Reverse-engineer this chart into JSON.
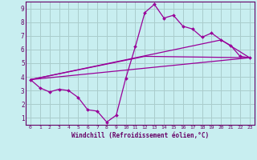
{
  "xlabel": "Windchill (Refroidissement éolien,°C)",
  "ylabel": "",
  "background_color": "#c8eef0",
  "grid_color": "#aacccc",
  "line_color": "#990099",
  "border_color": "#660066",
  "xlim": [
    -0.5,
    23.5
  ],
  "ylim": [
    0.5,
    9.5
  ],
  "xticks": [
    0,
    1,
    2,
    3,
    4,
    5,
    6,
    7,
    8,
    9,
    10,
    11,
    12,
    13,
    14,
    15,
    16,
    17,
    18,
    19,
    20,
    21,
    22,
    23
  ],
  "yticks": [
    1,
    2,
    3,
    4,
    5,
    6,
    7,
    8,
    9
  ],
  "series": [
    {
      "x": [
        0,
        1,
        2,
        3,
        4,
        5,
        6,
        7,
        8,
        9,
        10,
        11,
        12,
        13,
        14,
        15,
        16,
        17,
        18,
        19,
        20,
        21,
        22,
        23
      ],
      "y": [
        3.8,
        3.2,
        2.9,
        3.1,
        3.0,
        2.5,
        1.6,
        1.5,
        0.7,
        1.2,
        3.9,
        6.2,
        8.7,
        9.3,
        8.3,
        8.5,
        7.7,
        7.5,
        6.9,
        7.2,
        6.7,
        6.3,
        5.5,
        5.4
      ],
      "marker": "D",
      "with_markers": true
    },
    {
      "x": [
        0,
        23
      ],
      "y": [
        3.8,
        5.4
      ],
      "with_markers": false
    },
    {
      "x": [
        0,
        12,
        23
      ],
      "y": [
        3.8,
        5.5,
        5.4
      ],
      "with_markers": false
    },
    {
      "x": [
        0,
        20,
        23
      ],
      "y": [
        3.8,
        6.7,
        5.4
      ],
      "with_markers": false
    }
  ]
}
